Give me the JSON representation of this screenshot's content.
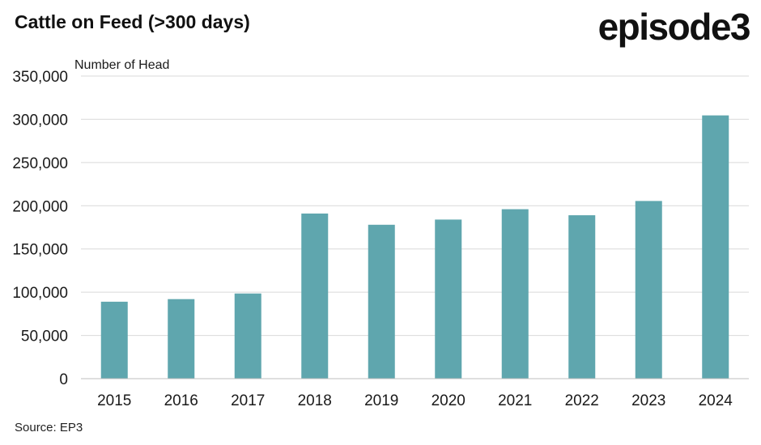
{
  "title": "Cattle on Feed (>300 days)",
  "logo_text": "episode3",
  "source": "Source: EP3",
  "colors": {
    "bar": "#5fa6ae",
    "grid": "#d9d9d9",
    "axis": "#bfbfbf"
  },
  "chart_data": {
    "type": "bar",
    "title": "Cattle on Feed (>300 days)",
    "ylabel": "Number of Head",
    "xlabel": "",
    "categories": [
      "2015",
      "2016",
      "2017",
      "2018",
      "2019",
      "2020",
      "2021",
      "2022",
      "2023",
      "2024"
    ],
    "values": [
      89000,
      92000,
      98500,
      191000,
      178000,
      184000,
      196000,
      189000,
      205500,
      304500
    ],
    "ylim": [
      0,
      350000
    ],
    "yticks": [
      0,
      50000,
      100000,
      150000,
      200000,
      250000,
      300000,
      350000
    ],
    "ytick_labels": [
      "0",
      "50,000",
      "100,000",
      "150,000",
      "200,000",
      "250,000",
      "300,000",
      "350,000"
    ],
    "grid": true,
    "legend": "none"
  }
}
